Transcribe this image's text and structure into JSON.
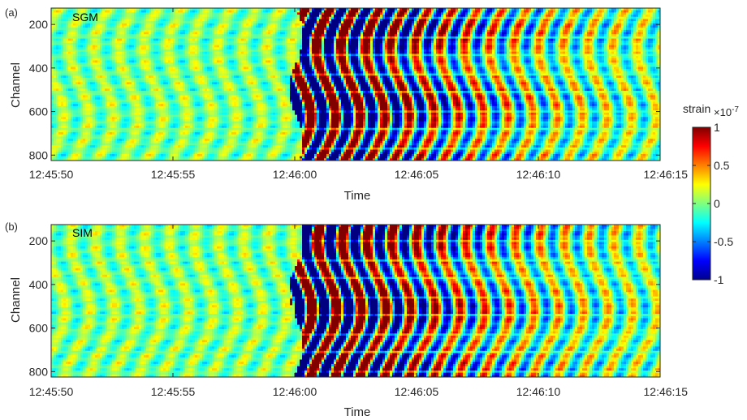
{
  "chart_data": [
    {
      "type": "heatmap",
      "panel_label": "(a)",
      "inset_label": "SGM",
      "xlabel": "Time",
      "ylabel": "Channel",
      "x_ticks": [
        "12:45:50",
        "12:45:55",
        "12:46:00",
        "12:46:05",
        "12:46:10",
        "12:46:15"
      ],
      "y_ticks": [
        200,
        400,
        600,
        800
      ],
      "xlim": [
        "12:45:50",
        "12:46:15"
      ],
      "ylim": [
        125,
        825
      ],
      "y_reversed": true,
      "clim": [
        -1,
        1
      ]
    },
    {
      "type": "heatmap",
      "panel_label": "(b)",
      "inset_label": "SIM",
      "xlabel": "Time",
      "ylabel": "Channel",
      "x_ticks": [
        "12:45:50",
        "12:45:55",
        "12:46:00",
        "12:46:05",
        "12:46:10",
        "12:46:15"
      ],
      "y_ticks": [
        200,
        400,
        600,
        800
      ],
      "xlim": [
        "12:45:50",
        "12:46:15"
      ],
      "ylim": [
        125,
        825
      ],
      "y_reversed": true,
      "clim": [
        -1,
        1
      ]
    }
  ],
  "colorbar": {
    "title": "strain",
    "exponent_base": "×10",
    "exponent": "-7",
    "ticks": [
      "1",
      "0.5",
      "0",
      "-0.5",
      "-1"
    ],
    "colormap": "jet"
  }
}
